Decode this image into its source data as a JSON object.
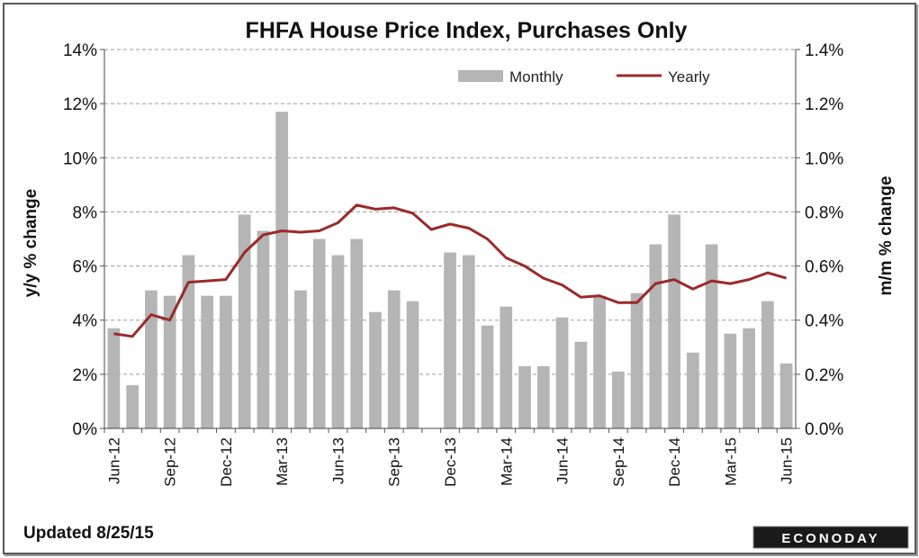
{
  "chart_data": {
    "type": "bar",
    "title": "FHFA House Price Index, Purchases Only",
    "ylabel_left": "y/y % change",
    "ylabel_right": "m/m % change",
    "y_left_ticks": [
      "0%",
      "2%",
      "4%",
      "6%",
      "8%",
      "10%",
      "12%",
      "14%"
    ],
    "y_right_ticks": [
      "0.0%",
      "0.2%",
      "0.4%",
      "0.6%",
      "0.8%",
      "1.0%",
      "1.2%",
      "1.4%"
    ],
    "ylim_left": [
      0,
      14
    ],
    "ylim_right": [
      0,
      1.4
    ],
    "grid": true,
    "legend_position": "top-right",
    "x_tick_labels": [
      "Jun-12",
      "Sep-12",
      "Dec-12",
      "Mar-13",
      "Jun-13",
      "Sep-13",
      "Dec-13",
      "Mar-14",
      "Jun-14",
      "Sep-14",
      "Dec-14",
      "Mar-15",
      "Jun-15"
    ],
    "categories": [
      "Jun-12",
      "Jul-12",
      "Aug-12",
      "Sep-12",
      "Oct-12",
      "Nov-12",
      "Dec-12",
      "Jan-13",
      "Feb-13",
      "Mar-13",
      "Apr-13",
      "May-13",
      "Jun-13",
      "Jul-13",
      "Aug-13",
      "Sep-13",
      "Oct-13",
      "Nov-13",
      "Dec-13",
      "Jan-14",
      "Feb-14",
      "Mar-14",
      "Apr-14",
      "May-14",
      "Jun-14",
      "Jul-14",
      "Aug-14",
      "Sep-14",
      "Oct-14",
      "Nov-14",
      "Dec-14",
      "Jan-15",
      "Feb-15",
      "Mar-15",
      "Apr-15",
      "May-15",
      "Jun-15"
    ],
    "series": [
      {
        "name": "Monthly",
        "type": "bar",
        "axis": "right",
        "color": "#b5b5b5",
        "values": [
          0.37,
          0.16,
          0.51,
          0.49,
          0.64,
          0.49,
          0.49,
          0.79,
          0.73,
          1.17,
          0.51,
          0.7,
          0.64,
          0.7,
          0.43,
          0.51,
          0.47,
          null,
          0.65,
          0.64,
          0.38,
          0.45,
          0.23,
          0.23,
          0.41,
          0.32,
          0.49,
          0.21,
          0.5,
          0.68,
          0.79,
          0.28,
          0.68,
          0.35,
          0.37,
          0.47,
          0.24
        ]
      },
      {
        "name": "Yearly",
        "type": "line",
        "axis": "left",
        "color": "#9b2a2a",
        "values": [
          3.5,
          3.4,
          4.2,
          4.0,
          5.4,
          5.45,
          5.5,
          6.5,
          7.15,
          7.3,
          7.25,
          7.3,
          7.6,
          8.25,
          8.1,
          8.15,
          7.95,
          7.35,
          7.55,
          7.4,
          7.0,
          6.3,
          6.0,
          5.55,
          5.3,
          4.85,
          4.9,
          4.65,
          4.65,
          5.35,
          5.5,
          5.15,
          5.45,
          5.35,
          5.5,
          5.75,
          5.55
        ]
      }
    ]
  },
  "footer": {
    "updated": "Updated 8/25/15",
    "logo": "ECONODAY"
  }
}
